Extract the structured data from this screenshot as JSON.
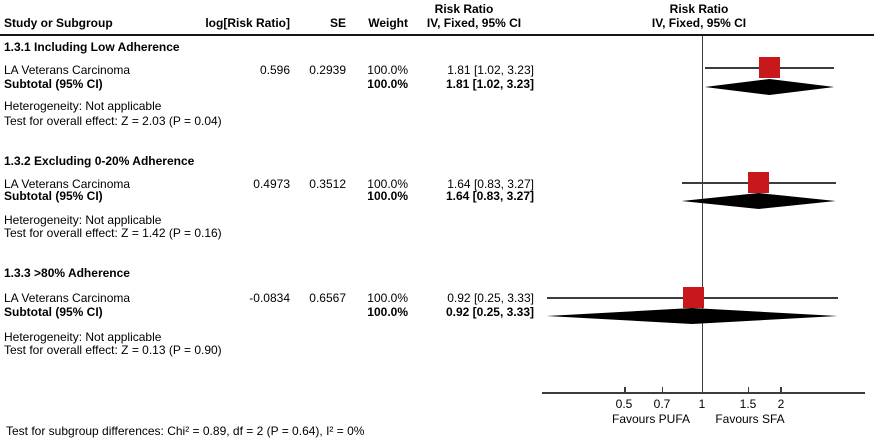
{
  "header": {
    "col_study": "Study or Subgroup",
    "col_logrr": "log[Risk Ratio]",
    "col_se": "SE",
    "col_weight": "Weight",
    "col_effect_line1": "Risk Ratio",
    "col_effect_line2": "IV, Fixed, 95% CI",
    "plot_line1": "Risk Ratio",
    "plot_line2": "IV, Fixed, 95% CI"
  },
  "sections": [
    {
      "title": "1.3.1 Including Low Adherence",
      "study_row": {
        "name": "LA Veterans Carcinoma",
        "log_rr": "0.596",
        "se": "0.2939",
        "weight": "100.0%",
        "estimate": "1.81 [1.02, 3.23]"
      },
      "subtotal_row": {
        "label": "Subtotal (95% CI)",
        "weight": "100.0%",
        "estimate": "1.81 [1.02, 3.23]"
      },
      "heterogeneity": "Heterogeneity: Not applicable",
      "overall_effect": "Test for overall effect: Z = 2.03 (P = 0.04)"
    },
    {
      "title": "1.3.2 Excluding 0-20% Adherence",
      "study_row": {
        "name": "LA Veterans Carcinoma",
        "log_rr": "0.4973",
        "se": "0.3512",
        "weight": "100.0%",
        "estimate": "1.64 [0.83, 3.27]"
      },
      "subtotal_row": {
        "label": "Subtotal (95% CI)",
        "weight": "100.0%",
        "estimate": "1.64 [0.83, 3.27]"
      },
      "heterogeneity": "Heterogeneity: Not applicable",
      "overall_effect": "Test for overall effect: Z = 1.42 (P = 0.16)"
    },
    {
      "title": "1.3.3 >80% Adherence",
      "study_row": {
        "name": "LA Veterans Carcinoma",
        "log_rr": "-0.0834",
        "se": "0.6567",
        "weight": "100.0%",
        "estimate": "0.92 [0.25, 3.33]"
      },
      "subtotal_row": {
        "label": "Subtotal (95% CI)",
        "weight": "100.0%",
        "estimate": "0.92 [0.25, 3.33]"
      },
      "heterogeneity": "Heterogeneity: Not applicable",
      "overall_effect": "Test for overall effect: Z = 0.13 (P = 0.90)"
    }
  ],
  "axis": {
    "tick_labels": [
      "0.5",
      "0.7",
      "1",
      "1.5",
      "2"
    ],
    "favours_left": "Favours PUFA",
    "favours_right": "Favours SFA"
  },
  "footer": {
    "subgroup_difference": "Test for subgroup differences: Chi² = 0.89, df = 2 (P = 0.64), I² = 0%"
  },
  "colors": {
    "red": "#c8181c",
    "line": "#3c3c3c",
    "sep": "#161616",
    "diamond": "#000000"
  },
  "chart_data": {
    "type": "forest",
    "effect_measure": "Risk Ratio",
    "method": "IV, Fixed, 95% CI",
    "x_scale": "log",
    "x_ticks": [
      0.5,
      0.7,
      1,
      1.5,
      2
    ],
    "x_axis_labels": {
      "left": "Favours PUFA",
      "right": "Favours SFA"
    },
    "subgroups": [
      {
        "name": "1.3.1 Including Low Adherence",
        "studies": [
          {
            "study": "LA Veterans Carcinoma",
            "log_rr": 0.596,
            "se": 0.2939,
            "weight_pct": 100.0,
            "rr": 1.81,
            "ci_low": 1.02,
            "ci_high": 3.23
          }
        ],
        "subtotal": {
          "rr": 1.81,
          "ci_low": 1.02,
          "ci_high": 3.23,
          "weight_pct": 100.0,
          "z": 2.03,
          "p": 0.04
        },
        "heterogeneity": "Not applicable"
      },
      {
        "name": "1.3.2 Excluding 0-20% Adherence",
        "studies": [
          {
            "study": "LA Veterans Carcinoma",
            "log_rr": 0.4973,
            "se": 0.3512,
            "weight_pct": 100.0,
            "rr": 1.64,
            "ci_low": 0.83,
            "ci_high": 3.27
          }
        ],
        "subtotal": {
          "rr": 1.64,
          "ci_low": 0.83,
          "ci_high": 3.27,
          "weight_pct": 100.0,
          "z": 1.42,
          "p": 0.16
        },
        "heterogeneity": "Not applicable"
      },
      {
        "name": "1.3.3 >80% Adherence",
        "studies": [
          {
            "study": "LA Veterans Carcinoma",
            "log_rr": -0.0834,
            "se": 0.6567,
            "weight_pct": 100.0,
            "rr": 0.92,
            "ci_low": 0.25,
            "ci_high": 3.33
          }
        ],
        "subtotal": {
          "rr": 0.92,
          "ci_low": 0.25,
          "ci_high": 3.33,
          "weight_pct": 100.0,
          "z": 0.13,
          "p": 0.9
        },
        "heterogeneity": "Not applicable"
      }
    ],
    "subgroup_difference": {
      "chi2": 0.89,
      "df": 2,
      "p": 0.64,
      "i2_pct": 0
    }
  }
}
